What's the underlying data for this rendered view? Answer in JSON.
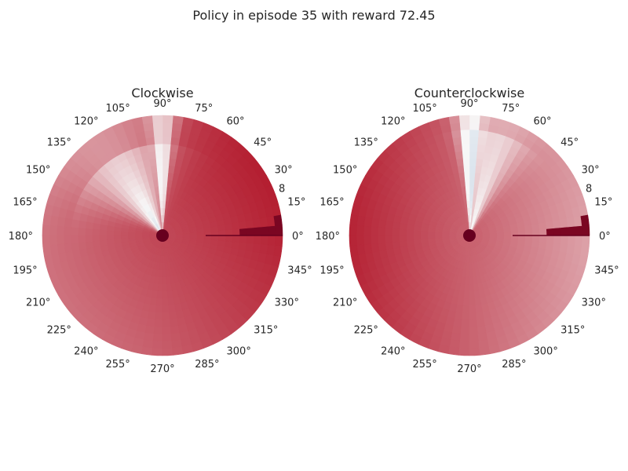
{
  "figure": {
    "suptitle": "Policy in episode 35 with reward 72.45"
  },
  "chart_data": [
    {
      "type": "heatmap",
      "projection": "polar",
      "title": "Clockwise",
      "theta_ticks": [
        "0°",
        "15°",
        "30°",
        "45°",
        "60°",
        "75°",
        "90°",
        "105°",
        "120°",
        "135°",
        "150°",
        "165°",
        "180°",
        "195°",
        "210°",
        "225°",
        "240°",
        "255°",
        "270°",
        "285°",
        "300°",
        "315°",
        "330°",
        "345°"
      ],
      "r_tick": "8",
      "colormap": "RdBu_r",
      "colors": {
        "low": "#2166ac",
        "mid": "#f7f7f7",
        "high": "#b2182b",
        "max": "#67001f"
      },
      "r_max": 8,
      "field": {
        "base": 0.83,
        "base_grad": -0.08,
        "base_theta": 210,
        "wedges": [
          {
            "theta": 90,
            "depth": 0.58,
            "width_inner": 1.5,
            "width_outer": 5,
            "r_extent": 8,
            "r_decay": 0.22
          },
          {
            "theta": 120,
            "depth": 0.4,
            "width_inner": 14,
            "width_outer": 28,
            "r_extent": 6,
            "r_decay": 0.5
          }
        ],
        "hot": [
          {
            "theta_from": 0,
            "theta_to": 10,
            "r_from": 4.0,
            "value": 0.98
          }
        ]
      }
    },
    {
      "type": "heatmap",
      "projection": "polar",
      "title": "Counterclockwise",
      "theta_ticks": [
        "0°",
        "15°",
        "30°",
        "45°",
        "60°",
        "75°",
        "90°",
        "105°",
        "120°",
        "135°",
        "150°",
        "165°",
        "180°",
        "195°",
        "210°",
        "225°",
        "240°",
        "255°",
        "270°",
        "285°",
        "300°",
        "315°",
        "330°",
        "345°"
      ],
      "r_tick": "8",
      "colormap": "RdBu_r",
      "colors": {
        "low": "#2166ac",
        "mid": "#f7f7f7",
        "high": "#b2182b",
        "max": "#67001f"
      },
      "r_max": 8,
      "field": {
        "base": 0.78,
        "base_grad": 0.12,
        "base_theta": 180,
        "wedges": [
          {
            "theta": 90,
            "depth": 0.55,
            "width_inner": 1.5,
            "width_outer": 5,
            "r_extent": 8,
            "r_decay": 0.25
          },
          {
            "theta": 75,
            "depth": 0.3,
            "width_inner": 8,
            "width_outer": 14,
            "r_extent": 7,
            "r_decay": 0.6
          }
        ],
        "hot": [
          {
            "theta_from": 0,
            "theta_to": 10,
            "r_from": 4.0,
            "value": 0.98
          }
        ]
      }
    }
  ]
}
